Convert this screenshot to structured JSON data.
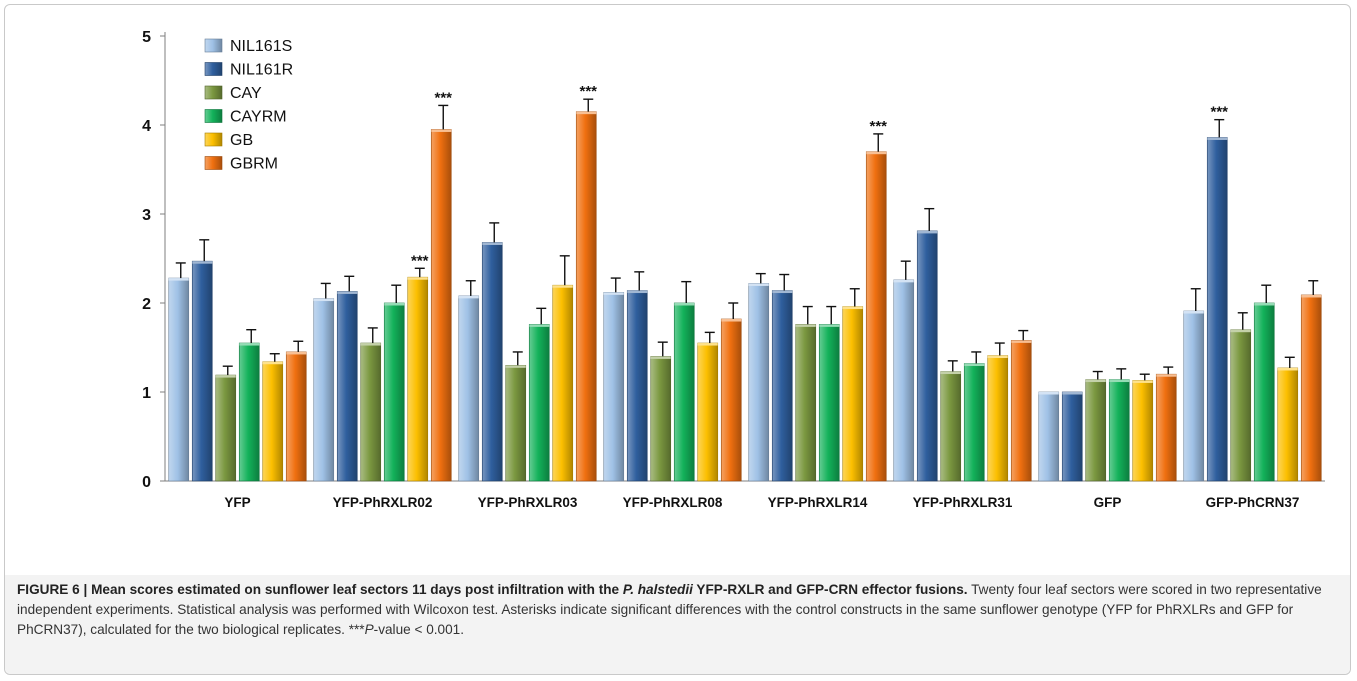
{
  "chart_data": {
    "type": "bar",
    "categories": [
      "YFP",
      "YFP-PhRXLR02",
      "YFP-PhRXLR03",
      "YFP-PhRXLR08",
      "YFP-PhRXLR14",
      "YFP-PhRXLR31",
      "GFP",
      "GFP-PhCRN37"
    ],
    "ylim": [
      0,
      5
    ],
    "yticks": [
      0,
      1,
      2,
      3,
      4,
      5
    ],
    "grid": false,
    "legend_position": "top-left",
    "series": [
      {
        "name": "NIL161S",
        "color": "#9fc1e6",
        "values": [
          2.28,
          2.05,
          2.08,
          2.12,
          2.22,
          2.26,
          1.0,
          1.91
        ],
        "errors": [
          0.17,
          0.17,
          0.17,
          0.16,
          0.11,
          0.21,
          0.0,
          0.25
        ]
      },
      {
        "name": "NIL161R",
        "color": "#2f5f9e",
        "values": [
          2.47,
          2.13,
          2.68,
          2.14,
          2.14,
          2.81,
          1.0,
          3.86
        ],
        "errors": [
          0.24,
          0.17,
          0.22,
          0.21,
          0.18,
          0.25,
          0.0,
          0.2
        ]
      },
      {
        "name": "CAY",
        "color": "#7b9840",
        "values": [
          1.19,
          1.55,
          1.3,
          1.4,
          1.76,
          1.23,
          1.14,
          1.7
        ],
        "errors": [
          0.1,
          0.17,
          0.15,
          0.16,
          0.2,
          0.12,
          0.09,
          0.19
        ]
      },
      {
        "name": "CAYRM",
        "color": "#13b25a",
        "values": [
          1.55,
          2.0,
          1.76,
          2.0,
          1.76,
          1.32,
          1.14,
          2.0
        ],
        "errors": [
          0.15,
          0.2,
          0.18,
          0.24,
          0.2,
          0.13,
          0.12,
          0.2
        ]
      },
      {
        "name": "GB",
        "color": "#fcbf00",
        "values": [
          1.34,
          2.29,
          2.2,
          1.55,
          1.96,
          1.41,
          1.13,
          1.27
        ],
        "errors": [
          0.09,
          0.1,
          0.33,
          0.12,
          0.2,
          0.14,
          0.07,
          0.12
        ]
      },
      {
        "name": "GBRM",
        "color": "#f07010",
        "values": [
          1.45,
          3.95,
          4.15,
          1.82,
          3.7,
          1.58,
          1.2,
          2.09
        ],
        "errors": [
          0.12,
          0.27,
          0.14,
          0.18,
          0.2,
          0.11,
          0.08,
          0.16
        ]
      }
    ],
    "annotations": [
      {
        "text": "***",
        "category": "YFP-PhRXLR02",
        "series": "GB"
      },
      {
        "text": "***",
        "category": "YFP-PhRXLR02",
        "series": "GBRM"
      },
      {
        "text": "***",
        "category": "YFP-PhRXLR03",
        "series": "GBRM"
      },
      {
        "text": "***",
        "category": "YFP-PhRXLR14",
        "series": "GBRM"
      },
      {
        "text": "***",
        "category": "GFP-PhCRN37",
        "series": "NIL161R"
      }
    ]
  },
  "caption": {
    "label": "FIGURE 6 |",
    "title_before": "Mean scores estimated on sunflower leaf sectors 11 days post infiltration with the",
    "title_italic": "P. halstedii",
    "title_after": "YFP-RXLR and GFP-CRN effector fusions.",
    "body": "Twenty four leaf sectors were scored in two representative independent experiments. Statistical analysis was performed with Wilcoxon test. Asterisks indicate significant differences with the control constructs in the same sunflower genotype (YFP for PhRXLRs and GFP for PhCRN37), calculated for the two biological replicates.",
    "pvalue_stars": "***",
    "pvalue_italic": "P",
    "pvalue_rest": "-value < 0.001."
  }
}
